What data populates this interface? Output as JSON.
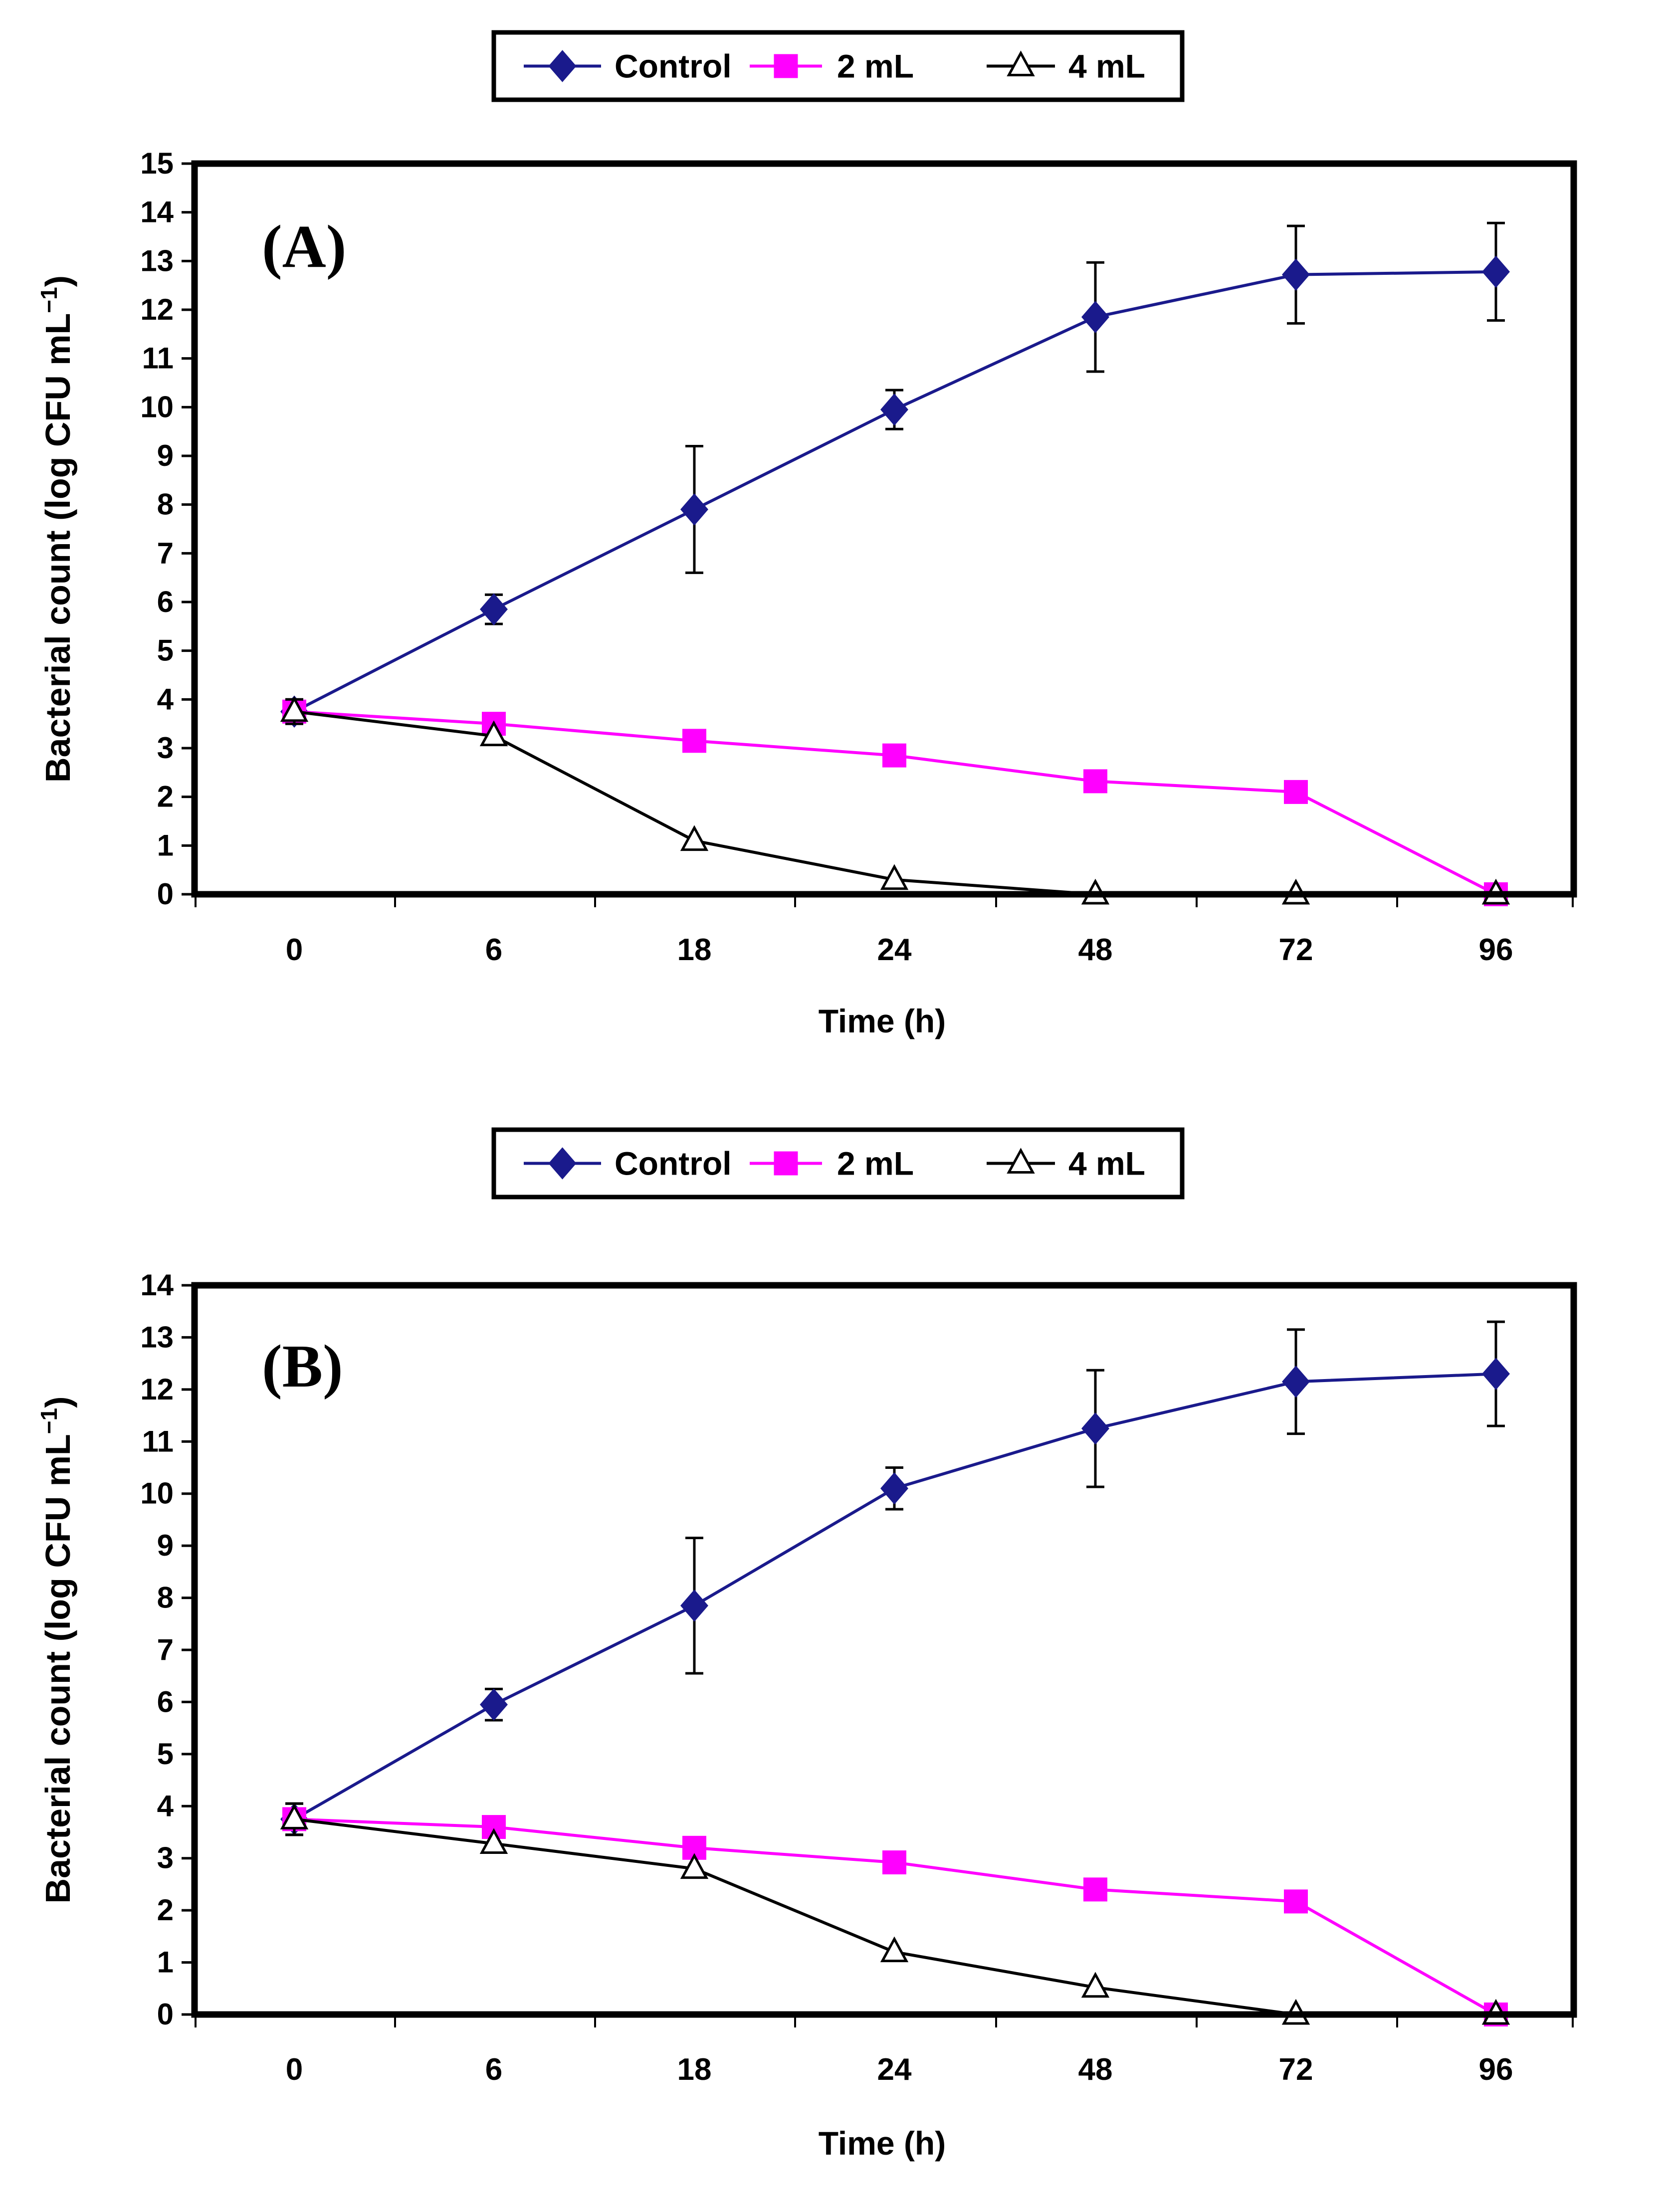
{
  "chart_data": [
    {
      "type": "line",
      "panel_label": "(A)",
      "xlabel": "Time (h)",
      "ylabel": "Bacterial count (log CFU mL",
      "ylabel_sup": "−1",
      "ylabel_close": ")",
      "categories": [
        "0",
        "6",
        "18",
        "24",
        "48",
        "72",
        "96"
      ],
      "ylim": [
        0,
        15
      ],
      "yticks": [
        0,
        1,
        2,
        3,
        4,
        5,
        6,
        7,
        8,
        9,
        10,
        11,
        12,
        13,
        14,
        15
      ],
      "legend": {
        "placement": "top-center",
        "entries": [
          "Control",
          "2 mL",
          "4 mL"
        ]
      },
      "series": [
        {
          "name": "Control",
          "color": "#1a1a8c",
          "marker": "diamond",
          "values": [
            3.75,
            5.85,
            7.9,
            9.95,
            11.85,
            12.72,
            12.78
          ],
          "errors": [
            0.25,
            0.3,
            1.3,
            0.4,
            1.12,
            1.0,
            1.0
          ]
        },
        {
          "name": "2 mL",
          "color": "#ff00ff",
          "marker": "square",
          "values": [
            3.75,
            3.5,
            3.15,
            2.85,
            2.32,
            2.1,
            0.0
          ],
          "errors": [
            0.25,
            0,
            0,
            0,
            0,
            0,
            0
          ]
        },
        {
          "name": "4 mL",
          "color": "#000000",
          "marker": "triangle-open",
          "values": [
            3.75,
            3.25,
            1.1,
            0.3,
            0.0,
            0.0,
            0.0
          ],
          "errors": [
            0.25,
            0,
            0,
            0,
            0,
            0,
            0
          ]
        }
      ]
    },
    {
      "type": "line",
      "panel_label": "(B)",
      "xlabel": "Time (h)",
      "ylabel": "Bacterial count (log CFU mL",
      "ylabel_sup": "−1",
      "ylabel_close": ")",
      "categories": [
        "0",
        "6",
        "18",
        "24",
        "48",
        "72",
        "96"
      ],
      "ylim": [
        0,
        14
      ],
      "yticks": [
        0,
        1,
        2,
        3,
        4,
        5,
        6,
        7,
        8,
        9,
        10,
        11,
        12,
        13,
        14
      ],
      "legend": {
        "placement": "top-center",
        "entries": [
          "Control",
          "2 mL",
          "4 mL"
        ]
      },
      "series": [
        {
          "name": "Control",
          "color": "#1a1a8c",
          "marker": "diamond",
          "values": [
            3.75,
            5.95,
            7.85,
            10.1,
            11.25,
            12.15,
            12.3
          ],
          "errors": [
            0.3,
            0.3,
            1.3,
            0.4,
            1.12,
            1.0,
            1.0
          ]
        },
        {
          "name": "2 mL",
          "color": "#ff00ff",
          "marker": "square",
          "values": [
            3.75,
            3.6,
            3.2,
            2.92,
            2.4,
            2.17,
            0.0
          ],
          "errors": [
            0.3,
            0,
            0,
            0,
            0,
            0,
            0
          ]
        },
        {
          "name": "4 mL",
          "color": "#000000",
          "marker": "triangle-open",
          "values": [
            3.75,
            3.28,
            2.8,
            1.2,
            0.52,
            0.0,
            0.0
          ],
          "errors": [
            0.3,
            0,
            0,
            0,
            0,
            0,
            0
          ]
        }
      ]
    }
  ]
}
